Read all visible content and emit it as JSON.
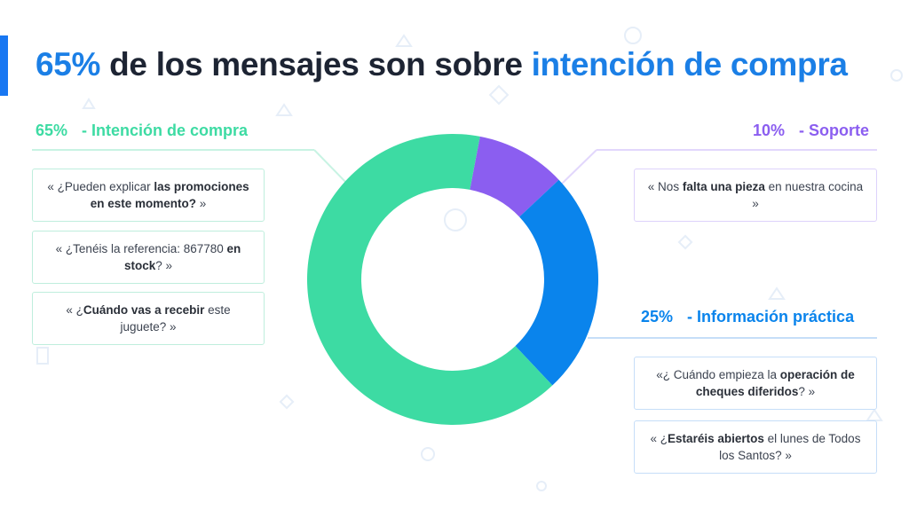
{
  "title": {
    "highlight": "65%",
    "middle": " de los mensajes son sobre ",
    "emphasis": "intención de compra"
  },
  "colors": {
    "compra": "#3ddba3",
    "soporte": "#8b5ef0",
    "informacion": "#0a84ec",
    "title_accent": "#1b7fe6"
  },
  "chart_data": {
    "type": "pie",
    "subtype": "donut",
    "slices": [
      {
        "label": "Intención de compra",
        "value": 65
      },
      {
        "label": "Soporte",
        "value": 10
      },
      {
        "label": "Información práctica",
        "value": 25
      }
    ]
  },
  "categories": {
    "compra": {
      "pct": "65%",
      "name": "- Intención de compra"
    },
    "soporte": {
      "pct": "10%",
      "name": "- Soporte"
    },
    "informacion": {
      "pct": "25%",
      "name": "- Información práctica"
    }
  },
  "quotes": {
    "compra": [
      {
        "a": "« ¿Pueden explicar ",
        "b": "las promociones en este momento?",
        "c": " »"
      },
      {
        "a": "« ¿Tenéis la referencia: 867780 ",
        "b": "en stock",
        "c": "? »"
      },
      {
        "a": "« ¿",
        "b": "Cuándo vas a recebir",
        "c": " este juguete? »"
      }
    ],
    "soporte": [
      {
        "a": "« Nos ",
        "b": "falta una pieza",
        "c": " en nuestra cocina »"
      }
    ],
    "informacion": [
      {
        "a": "«¿ Cuándo empieza la ",
        "b": "operación de cheques diferidos",
        "c": "? »"
      },
      {
        "a": "« ¿",
        "b": "Estaréis abiertos",
        "c": " el lunes de Todos los Santos? »"
      }
    ]
  }
}
